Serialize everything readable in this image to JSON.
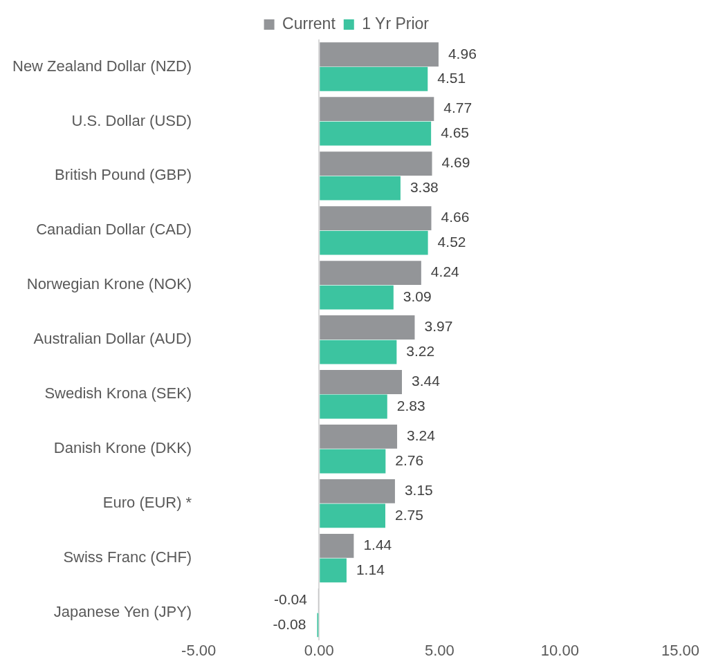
{
  "chart_data": {
    "type": "bar",
    "orientation": "horizontal",
    "categories": [
      "New Zealand Dollar (NZD)",
      "U.S. Dollar (USD)",
      "British Pound (GBP)",
      "Canadian Dollar (CAD)",
      "Norwegian Krone (NOK)",
      "Australian Dollar (AUD)",
      "Swedish Krona (SEK)",
      "Danish Krone (DKK)",
      "Euro (EUR) *",
      "Swiss Franc (CHF)",
      "Japanese Yen (JPY)"
    ],
    "series": [
      {
        "name": "Current",
        "color": "#939598",
        "values": [
          4.96,
          4.77,
          4.69,
          4.66,
          4.24,
          3.97,
          3.44,
          3.24,
          3.15,
          1.44,
          -0.04
        ]
      },
      {
        "name": "1 Yr Prior",
        "color": "#3cc4a0",
        "values": [
          4.51,
          4.65,
          3.38,
          4.52,
          3.09,
          3.22,
          2.83,
          2.76,
          2.75,
          1.14,
          -0.08
        ]
      }
    ],
    "xlim": [
      -5,
      15
    ],
    "xticks": [
      {
        "value": -5,
        "label": "-5.00"
      },
      {
        "value": 0,
        "label": "0.00"
      },
      {
        "value": 5,
        "label": "5.00"
      },
      {
        "value": 10,
        "label": "10.00"
      },
      {
        "value": 15,
        "label": "15.00"
      }
    ],
    "data_labels": true,
    "legend": "top"
  }
}
